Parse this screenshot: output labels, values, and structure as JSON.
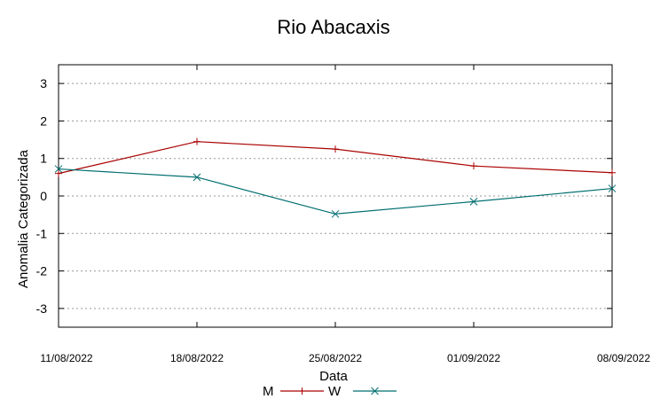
{
  "chart_data": {
    "type": "line",
    "title": "Rio Abacaxis",
    "xlabel": "Data",
    "ylabel": "Anomalia Categorizada",
    "x": [
      "11/08/2022",
      "18/08/2022",
      "25/08/2022",
      "01/09/2022",
      "08/09/2022"
    ],
    "ylim": [
      -3.5,
      3.5
    ],
    "yticks": [
      "3",
      "2",
      "1",
      "0",
      "-1",
      "-2",
      "-3"
    ],
    "grid": "horizontal dotted",
    "legend_position": "bottom-center",
    "series": [
      {
        "name": "M",
        "values": [
          0.6,
          1.45,
          1.25,
          0.8,
          0.62
        ],
        "color": "#aa0000",
        "marker": "plus"
      },
      {
        "name": "W",
        "values": [
          0.72,
          0.5,
          -0.48,
          -0.15,
          0.2
        ],
        "color": "#006e70",
        "marker": "cross"
      }
    ]
  }
}
